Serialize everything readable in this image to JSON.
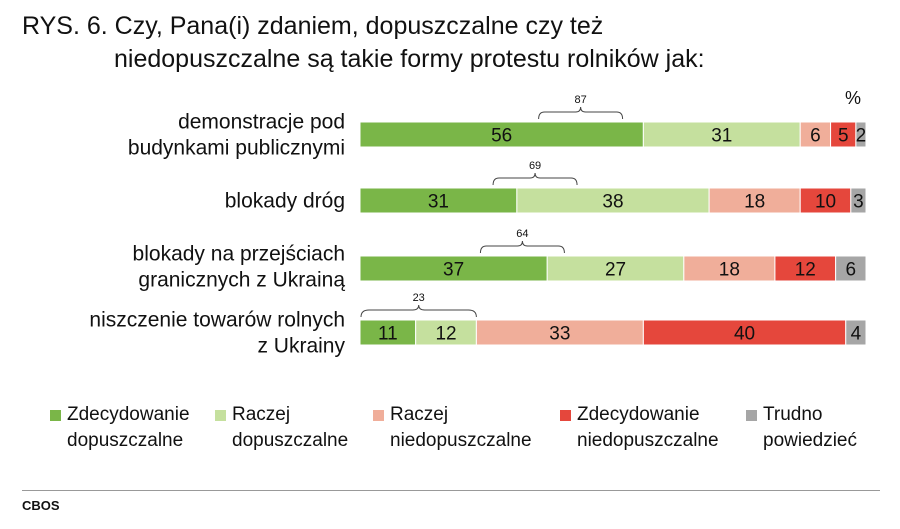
{
  "title": {
    "line1": "RYS. 6. Czy, Pana(i) zdaniem, dopuszczalne czy też",
    "line2": "niedopuszczalne są takie formy protestu rolników jak:"
  },
  "unit_label": "%",
  "source": "CBOS",
  "colors": {
    "strong_yes": "#7ab648",
    "rather_yes": "#c5e09e",
    "rather_no": "#f0ae9a",
    "strong_no": "#e5473c",
    "hard_to_say": "#a6a6a6"
  },
  "legend": [
    {
      "line1": "Zdecydowanie",
      "line2": "dopuszczalne",
      "color": "#7ab648"
    },
    {
      "line1": "Raczej",
      "line2": "dopuszczalne",
      "color": "#c5e09e"
    },
    {
      "line1": "Raczej",
      "line2": "niedopuszczalne",
      "color": "#f0ae9a"
    },
    {
      "line1": "Zdecydowanie",
      "line2": "niedopuszczalne",
      "color": "#e5473c"
    },
    {
      "line1": "Trudno",
      "line2": "powiedzieć",
      "color": "#a6a6a6"
    }
  ],
  "chart_data": {
    "type": "bar",
    "orientation": "horizontal",
    "stacked": true,
    "unit": "%",
    "categories": [
      [
        "demonstracje pod",
        "budynkami publicznymi"
      ],
      [
        "blokady dróg"
      ],
      [
        "blokady na przejściach",
        "granicznych z Ukrainą"
      ],
      [
        "niszczenie towarów rolnych",
        "z Ukrainy"
      ]
    ],
    "series": [
      {
        "name": "Zdecydowanie dopuszczalne",
        "values": [
          56,
          31,
          37,
          11
        ]
      },
      {
        "name": "Raczej dopuszczalne",
        "values": [
          31,
          38,
          27,
          12
        ]
      },
      {
        "name": "Raczej niedopuszczalne",
        "values": [
          6,
          18,
          18,
          33
        ]
      },
      {
        "name": "Zdecydowanie niedopuszczalne",
        "values": [
          5,
          10,
          12,
          40
        ]
      },
      {
        "name": "Trudno powiedzieć",
        "values": [
          2,
          3,
          6,
          4
        ]
      }
    ],
    "totals_acceptable": [
      87,
      69,
      64,
      23
    ]
  }
}
